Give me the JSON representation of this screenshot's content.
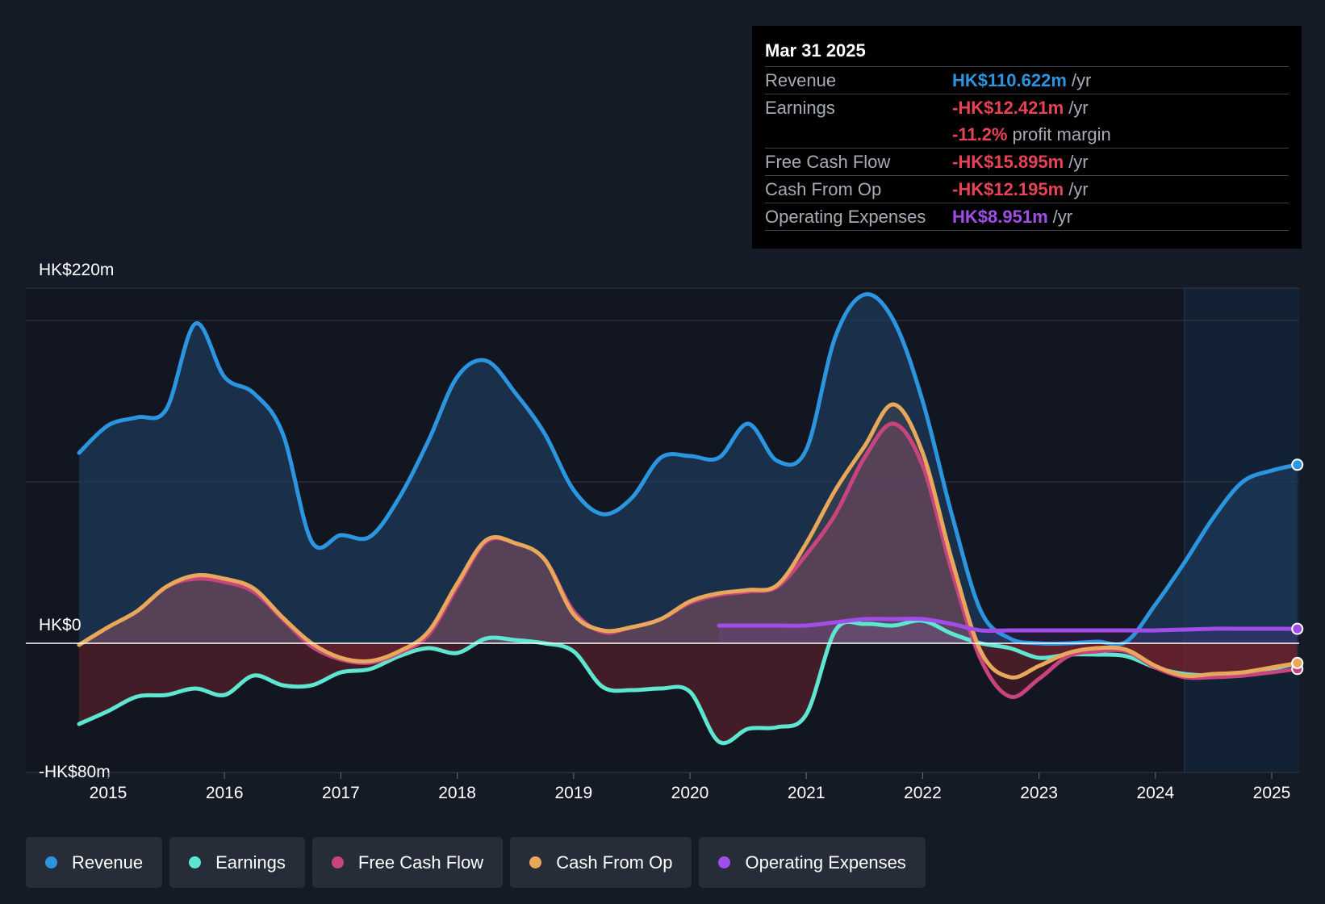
{
  "tooltip": {
    "date": "Mar 31 2025",
    "rows": [
      {
        "label": "Revenue",
        "value": "HK$110.622m",
        "unit": "/yr",
        "color": "#2b95e0"
      },
      {
        "label": "Earnings",
        "value": "-HK$12.421m",
        "unit": "/yr",
        "color": "#e84256"
      },
      {
        "label": "",
        "value": "-11.2%",
        "unit": "profit margin",
        "color": "#e84256"
      },
      {
        "label": "Free Cash Flow",
        "value": "-HK$15.895m",
        "unit": "/yr",
        "color": "#e84256"
      },
      {
        "label": "Cash From Op",
        "value": "-HK$12.195m",
        "unit": "/yr",
        "color": "#e84256"
      },
      {
        "label": "Operating Expenses",
        "value": "HK$8.951m",
        "unit": "/yr",
        "color": "#a24de8"
      }
    ]
  },
  "legend": [
    {
      "label": "Revenue",
      "color": "#2b95e0"
    },
    {
      "label": "Earnings",
      "color": "#5ee6d0"
    },
    {
      "label": "Free Cash Flow",
      "color": "#c8447e"
    },
    {
      "label": "Cash From Op",
      "color": "#e8a85c"
    },
    {
      "label": "Operating Expenses",
      "color": "#a24de8"
    }
  ],
  "chart_data": {
    "type": "line",
    "title": "",
    "xlabel": "",
    "ylabel": "",
    "y_tick_labels": {
      "top": "HK$220m",
      "zero": "HK$0",
      "bottom": "-HK$80m"
    },
    "ylim": [
      -80,
      220
    ],
    "xlim": [
      2014.28,
      2025.25
    ],
    "x_ticks": [
      2015,
      2016,
      2017,
      2018,
      2019,
      2020,
      2021,
      2022,
      2023,
      2024,
      2025
    ],
    "x_tick_labels": [
      "2015",
      "2016",
      "2017",
      "2018",
      "2019",
      "2020",
      "2021",
      "2022",
      "2023",
      "2024",
      "2025"
    ],
    "forecast_start": 2024.25,
    "series": [
      {
        "name": "Revenue",
        "color": "#2b95e0",
        "points": [
          [
            2014.75,
            118
          ],
          [
            2015.0,
            135
          ],
          [
            2015.25,
            140
          ],
          [
            2015.5,
            145
          ],
          [
            2015.75,
            198
          ],
          [
            2016.0,
            165
          ],
          [
            2016.25,
            155
          ],
          [
            2016.5,
            130
          ],
          [
            2016.75,
            63
          ],
          [
            2017.0,
            67
          ],
          [
            2017.25,
            66
          ],
          [
            2017.5,
            90
          ],
          [
            2017.75,
            125
          ],
          [
            2018.0,
            165
          ],
          [
            2018.25,
            175
          ],
          [
            2018.5,
            155
          ],
          [
            2018.75,
            130
          ],
          [
            2019.0,
            95
          ],
          [
            2019.25,
            80
          ],
          [
            2019.5,
            90
          ],
          [
            2019.75,
            115
          ],
          [
            2020.0,
            116
          ],
          [
            2020.25,
            115
          ],
          [
            2020.5,
            136
          ],
          [
            2020.75,
            113
          ],
          [
            2021.0,
            120
          ],
          [
            2021.25,
            190
          ],
          [
            2021.5,
            216
          ],
          [
            2021.75,
            200
          ],
          [
            2022.0,
            150
          ],
          [
            2022.25,
            80
          ],
          [
            2022.5,
            20
          ],
          [
            2022.75,
            3
          ],
          [
            2023.0,
            0
          ],
          [
            2023.25,
            0
          ],
          [
            2023.5,
            1
          ],
          [
            2023.75,
            1
          ],
          [
            2024.0,
            24
          ],
          [
            2024.25,
            50
          ],
          [
            2024.5,
            78
          ],
          [
            2024.75,
            100
          ],
          [
            2025.0,
            107
          ],
          [
            2025.22,
            110.6
          ]
        ]
      },
      {
        "name": "Earnings",
        "color": "#5ee6d0",
        "points": [
          [
            2014.75,
            -50
          ],
          [
            2015.0,
            -42
          ],
          [
            2015.25,
            -33
          ],
          [
            2015.5,
            -32
          ],
          [
            2015.75,
            -28
          ],
          [
            2016.0,
            -32
          ],
          [
            2016.25,
            -20
          ],
          [
            2016.5,
            -26
          ],
          [
            2016.75,
            -26
          ],
          [
            2017.0,
            -18
          ],
          [
            2017.25,
            -16
          ],
          [
            2017.5,
            -8
          ],
          [
            2017.75,
            -3
          ],
          [
            2018.0,
            -6
          ],
          [
            2018.25,
            3
          ],
          [
            2018.5,
            2
          ],
          [
            2018.75,
            0
          ],
          [
            2019.0,
            -5
          ],
          [
            2019.25,
            -27
          ],
          [
            2019.5,
            -29
          ],
          [
            2019.75,
            -28
          ],
          [
            2020.0,
            -30
          ],
          [
            2020.25,
            -61
          ],
          [
            2020.5,
            -53
          ],
          [
            2020.75,
            -52
          ],
          [
            2021.0,
            -44
          ],
          [
            2021.25,
            8
          ],
          [
            2021.5,
            12
          ],
          [
            2021.75,
            11
          ],
          [
            2022.0,
            14
          ],
          [
            2022.25,
            6
          ],
          [
            2022.5,
            0
          ],
          [
            2022.75,
            -3
          ],
          [
            2023.0,
            -9
          ],
          [
            2023.25,
            -7
          ],
          [
            2023.5,
            -7
          ],
          [
            2023.75,
            -8
          ],
          [
            2024.0,
            -15
          ],
          [
            2024.25,
            -19
          ],
          [
            2024.5,
            -20
          ],
          [
            2024.75,
            -20
          ],
          [
            2025.0,
            -16
          ],
          [
            2025.22,
            -12.4
          ]
        ]
      },
      {
        "name": "Free Cash Flow",
        "color": "#c8447e",
        "points": [
          [
            2014.75,
            -1
          ],
          [
            2015.0,
            10
          ],
          [
            2015.25,
            20
          ],
          [
            2015.5,
            35
          ],
          [
            2015.75,
            40
          ],
          [
            2016.0,
            38
          ],
          [
            2016.25,
            32
          ],
          [
            2016.5,
            15
          ],
          [
            2016.75,
            -2
          ],
          [
            2017.0,
            -10
          ],
          [
            2017.25,
            -12
          ],
          [
            2017.5,
            -6
          ],
          [
            2017.75,
            5
          ],
          [
            2018.0,
            35
          ],
          [
            2018.25,
            63
          ],
          [
            2018.5,
            62
          ],
          [
            2018.75,
            52
          ],
          [
            2019.0,
            20
          ],
          [
            2019.25,
            7
          ],
          [
            2019.5,
            10
          ],
          [
            2019.75,
            15
          ],
          [
            2020.0,
            25
          ],
          [
            2020.25,
            30
          ],
          [
            2020.5,
            32
          ],
          [
            2020.75,
            35
          ],
          [
            2021.0,
            55
          ],
          [
            2021.25,
            80
          ],
          [
            2021.5,
            115
          ],
          [
            2021.75,
            136
          ],
          [
            2022.0,
            110
          ],
          [
            2022.25,
            45
          ],
          [
            2022.5,
            -10
          ],
          [
            2022.75,
            -33
          ],
          [
            2023.0,
            -22
          ],
          [
            2023.25,
            -8
          ],
          [
            2023.5,
            -5
          ],
          [
            2023.75,
            -5
          ],
          [
            2024.0,
            -15
          ],
          [
            2024.25,
            -21
          ],
          [
            2024.5,
            -21
          ],
          [
            2024.75,
            -20
          ],
          [
            2025.0,
            -18
          ],
          [
            2025.22,
            -15.9
          ]
        ]
      },
      {
        "name": "Cash From Op",
        "color": "#e8a85c",
        "points": [
          [
            2014.75,
            -1
          ],
          [
            2015.0,
            10
          ],
          [
            2015.25,
            20
          ],
          [
            2015.5,
            35
          ],
          [
            2015.75,
            42
          ],
          [
            2016.0,
            40
          ],
          [
            2016.25,
            34
          ],
          [
            2016.5,
            16
          ],
          [
            2016.75,
            0
          ],
          [
            2017.0,
            -9
          ],
          [
            2017.25,
            -11
          ],
          [
            2017.5,
            -5
          ],
          [
            2017.75,
            7
          ],
          [
            2018.0,
            37
          ],
          [
            2018.25,
            64
          ],
          [
            2018.5,
            62
          ],
          [
            2018.75,
            52
          ],
          [
            2019.0,
            18
          ],
          [
            2019.25,
            8
          ],
          [
            2019.5,
            10
          ],
          [
            2019.75,
            15
          ],
          [
            2020.0,
            26
          ],
          [
            2020.25,
            31
          ],
          [
            2020.5,
            33
          ],
          [
            2020.75,
            36
          ],
          [
            2021.0,
            62
          ],
          [
            2021.25,
            95
          ],
          [
            2021.5,
            122
          ],
          [
            2021.75,
            148
          ],
          [
            2022.0,
            118
          ],
          [
            2022.25,
            52
          ],
          [
            2022.5,
            -5
          ],
          [
            2022.75,
            -21
          ],
          [
            2023.0,
            -14
          ],
          [
            2023.25,
            -6
          ],
          [
            2023.5,
            -3
          ],
          [
            2023.75,
            -4
          ],
          [
            2024.0,
            -14
          ],
          [
            2024.25,
            -20
          ],
          [
            2024.5,
            -19
          ],
          [
            2024.75,
            -18
          ],
          [
            2025.0,
            -15
          ],
          [
            2025.22,
            -12.2
          ]
        ]
      },
      {
        "name": "Operating Expenses",
        "color": "#a24de8",
        "points": [
          [
            2020.25,
            11
          ],
          [
            2020.5,
            11
          ],
          [
            2020.75,
            11
          ],
          [
            2021.0,
            11
          ],
          [
            2021.25,
            13
          ],
          [
            2021.5,
            15
          ],
          [
            2021.75,
            15
          ],
          [
            2022.0,
            15
          ],
          [
            2022.25,
            12
          ],
          [
            2022.5,
            8
          ],
          [
            2022.75,
            8
          ],
          [
            2023.0,
            8
          ],
          [
            2023.25,
            8
          ],
          [
            2023.5,
            8
          ],
          [
            2023.75,
            8
          ],
          [
            2024.0,
            8
          ],
          [
            2024.25,
            8.5
          ],
          [
            2024.5,
            9
          ],
          [
            2024.75,
            9
          ],
          [
            2025.0,
            9
          ],
          [
            2025.22,
            8.95
          ]
        ]
      }
    ]
  }
}
